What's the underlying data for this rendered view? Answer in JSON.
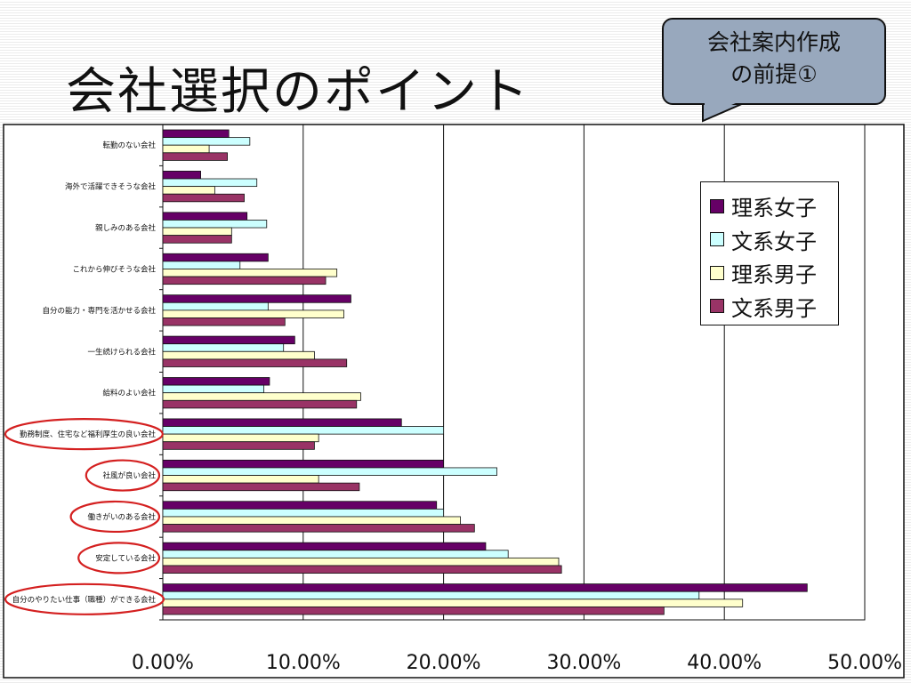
{
  "slide": {
    "title": "会社選択のポイント",
    "callout": {
      "lines": [
        "会社案内作成",
        "の前提①"
      ]
    }
  },
  "chart_data": {
    "type": "bar",
    "orientation": "horizontal",
    "title": "",
    "xlabel": "",
    "ylabel": "",
    "xlim": [
      0,
      50
    ],
    "x_ticks": [
      "0.00%",
      "10.00%",
      "20.00%",
      "30.00%",
      "40.00%",
      "50.00%"
    ],
    "grid": true,
    "legend_position": "right",
    "categories": [
      "転勤のない会社",
      "海外で活躍できそうな会社",
      "親しみのある会社",
      "これから伸びそうな会社",
      "自分の能力・専門を活かせる会社",
      "一生続けられる会社",
      "給料のよい会社",
      "勤務制度、住宅など福利厚生の良い会社",
      "社風が良い会社",
      "働きがいのある会社",
      "安定している会社",
      "自分のやりたい仕事（職種）ができる会社"
    ],
    "highlighted_categories": [
      "勤務制度、住宅など福利厚生の良い会社",
      "社風が良い会社",
      "働きがいのある会社",
      "安定している会社",
      "自分のやりたい仕事（職種）ができる会社"
    ],
    "series": [
      {
        "name": "理系女子",
        "color": "#660066",
        "values": [
          4.7,
          2.7,
          6.0,
          7.5,
          13.4,
          9.4,
          7.6,
          17.0,
          20.0,
          19.5,
          23.0,
          45.9
        ]
      },
      {
        "name": "文系女子",
        "color": "#ccffff",
        "values": [
          6.2,
          6.7,
          7.4,
          5.5,
          7.5,
          8.6,
          7.2,
          20.0,
          23.8,
          20.0,
          24.6,
          38.2
        ]
      },
      {
        "name": "理系男子",
        "color": "#ffffcc",
        "values": [
          3.3,
          3.7,
          4.9,
          12.4,
          12.9,
          10.8,
          14.1,
          11.1,
          11.1,
          21.2,
          28.2,
          41.3
        ]
      },
      {
        "name": "文系男子",
        "color": "#993366",
        "values": [
          4.6,
          5.8,
          4.9,
          11.6,
          8.7,
          13.1,
          13.8,
          10.8,
          14.0,
          22.2,
          28.4,
          35.7
        ]
      }
    ]
  }
}
